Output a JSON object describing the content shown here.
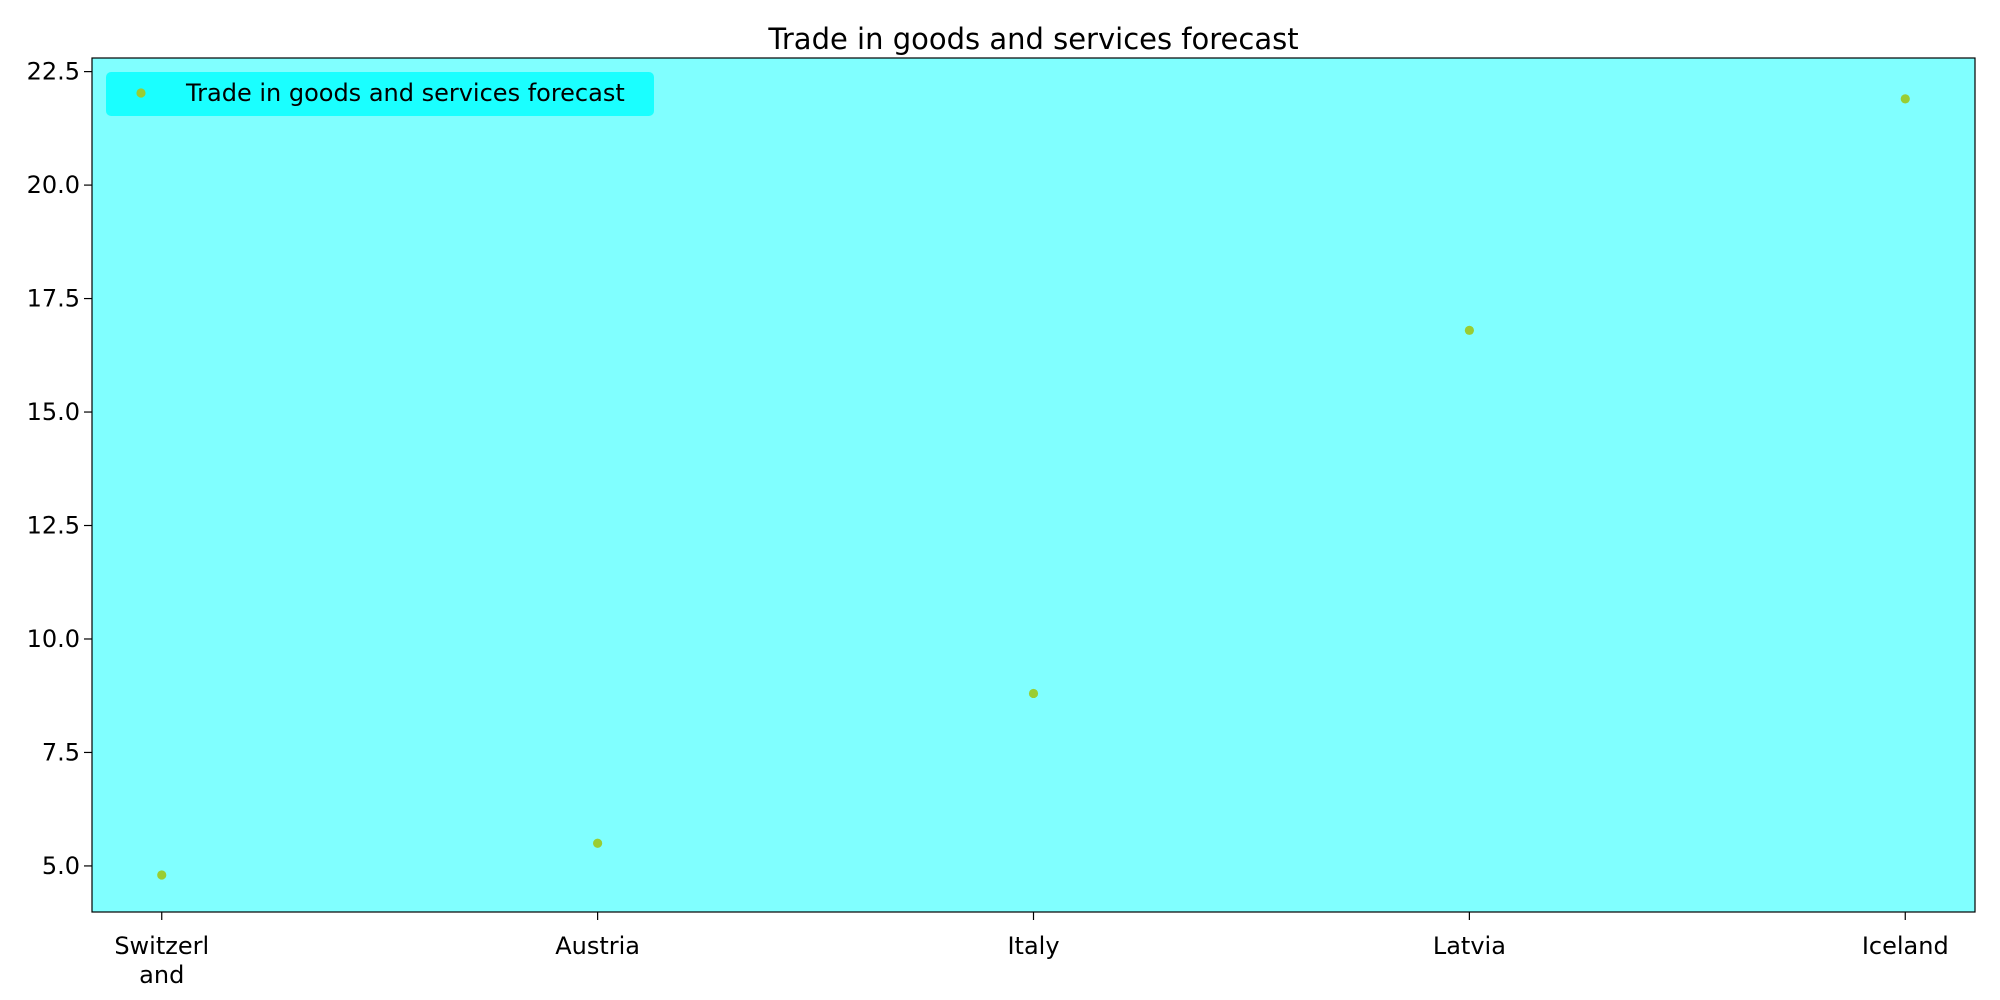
{
  "chart_data": {
    "type": "scatter",
    "title": "Trade in goods and services forecast",
    "xlabel": "",
    "ylabel": "",
    "categories": [
      [
        "Switzerl",
        "and"
      ],
      [
        "Austria"
      ],
      [
        "Italy"
      ],
      [
        "Latvia"
      ],
      [
        "Iceland"
      ]
    ],
    "series": [
      {
        "name": "Trade in goods and services forecast",
        "values": [
          4.8,
          5.5,
          8.8,
          16.8,
          21.9
        ]
      }
    ],
    "ylim": [
      3.985,
      22.8
    ],
    "yticks": [
      "5.0",
      "7.5",
      "10.0",
      "12.5",
      "15.0",
      "17.5",
      "20.0",
      "22.5"
    ],
    "grid": false,
    "legend_position": "top-left",
    "colors": {
      "plot_background": "#80ffff",
      "legend_background": "#1affff",
      "marker": "#9acd32",
      "axis": "#000000"
    }
  }
}
